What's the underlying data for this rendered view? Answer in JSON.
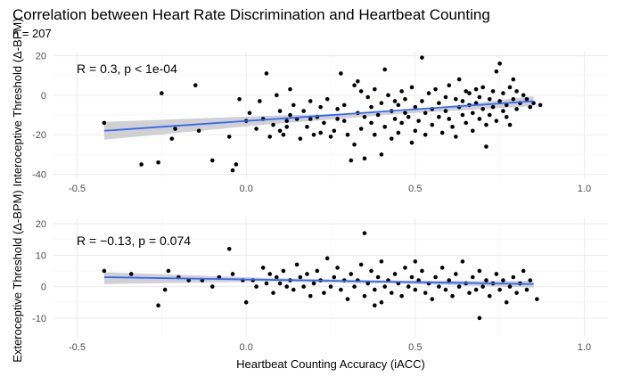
{
  "chart_data": {
    "type": "scatter",
    "title": "Correlation between Heart Rate Discrimination and Heartbeat Counting",
    "n_label": "n = 207",
    "xlabel": "Heartbeat Counting Accuracy (iACC)",
    "grid": true,
    "panels": [
      {
        "ylabel": "Interoceptive Threshold (Δ-BPM)",
        "annotation": "R = 0.3, p < 1e-04",
        "xlim": [
          -0.57,
          1.07
        ],
        "ylim": [
          -42,
          22
        ],
        "xticks": [
          -0.5,
          0.0,
          0.5,
          1.0
        ],
        "xtick_labels": [
          "-0.5",
          "0.0",
          "0.5",
          "1.0"
        ],
        "yticks": [
          -40,
          -20,
          0,
          20
        ],
        "ytick_labels": [
          "-40",
          "-20",
          "0",
          "20"
        ],
        "fit": {
          "x1": -0.42,
          "y1": -18,
          "x2": 0.85,
          "y2": -3
        },
        "band": {
          "lower": [
            -22.5,
            -15,
            -9.5,
            -5.5
          ],
          "upper": [
            -13.5,
            -10.5,
            -8.5,
            -0.5
          ],
          "x": [
            -0.42,
            0.05,
            0.45,
            0.85
          ]
        },
        "points": [
          [
            -0.42,
            -14
          ],
          [
            -0.31,
            -35
          ],
          [
            -0.25,
            1
          ],
          [
            -0.26,
            -34
          ],
          [
            -0.22,
            -22
          ],
          [
            -0.21,
            -17
          ],
          [
            -0.15,
            5
          ],
          [
            -0.14,
            -18
          ],
          [
            -0.1,
            -33
          ],
          [
            -0.05,
            -21
          ],
          [
            -0.04,
            -38
          ],
          [
            -0.03,
            -35
          ],
          [
            -0.02,
            -2
          ],
          [
            0.0,
            -13
          ],
          [
            0.01,
            -9
          ],
          [
            0.03,
            -17
          ],
          [
            0.04,
            -3
          ],
          [
            0.05,
            -12
          ],
          [
            0.06,
            11
          ],
          [
            0.07,
            -21
          ],
          [
            0.08,
            -15
          ],
          [
            0.09,
            0
          ],
          [
            0.1,
            -18
          ],
          [
            0.1,
            -8
          ],
          [
            0.11,
            -20
          ],
          [
            0.12,
            -13
          ],
          [
            0.12,
            -16
          ],
          [
            0.13,
            3
          ],
          [
            0.13,
            -10
          ],
          [
            0.14,
            -5
          ],
          [
            0.15,
            -12
          ],
          [
            0.16,
            -22
          ],
          [
            0.17,
            -8
          ],
          [
            0.18,
            -16
          ],
          [
            0.19,
            -3
          ],
          [
            0.19,
            -12
          ],
          [
            0.2,
            -20
          ],
          [
            0.21,
            -11
          ],
          [
            0.22,
            -19
          ],
          [
            0.22,
            -6
          ],
          [
            0.23,
            -14
          ],
          [
            0.24,
            -2
          ],
          [
            0.25,
            -21
          ],
          [
            0.26,
            -18
          ],
          [
            0.27,
            -7
          ],
          [
            0.27,
            -12
          ],
          [
            0.28,
            11
          ],
          [
            0.29,
            -5
          ],
          [
            0.29,
            -13
          ],
          [
            0.3,
            -20
          ],
          [
            0.31,
            -33
          ],
          [
            0.32,
            -25
          ],
          [
            0.32,
            5
          ],
          [
            0.33,
            7
          ],
          [
            0.33,
            -9
          ],
          [
            0.34,
            2
          ],
          [
            0.34,
            -17
          ],
          [
            0.35,
            -11
          ],
          [
            0.35,
            -32
          ],
          [
            0.36,
            -1
          ],
          [
            0.37,
            -14
          ],
          [
            0.37,
            -6
          ],
          [
            0.38,
            3
          ],
          [
            0.38,
            -20
          ],
          [
            0.39,
            -10
          ],
          [
            0.4,
            -30
          ],
          [
            0.4,
            -4
          ],
          [
            0.41,
            -16
          ],
          [
            0.41,
            13
          ],
          [
            0.42,
            0
          ],
          [
            0.43,
            -8
          ],
          [
            0.43,
            -22
          ],
          [
            0.44,
            -12
          ],
          [
            0.44,
            -3
          ],
          [
            0.45,
            -19
          ],
          [
            0.45,
            -5
          ],
          [
            0.46,
            2
          ],
          [
            0.46,
            -14
          ],
          [
            0.47,
            -9
          ],
          [
            0.47,
            -2
          ],
          [
            0.48,
            -11
          ],
          [
            0.49,
            -24
          ],
          [
            0.49,
            4
          ],
          [
            0.5,
            -6
          ],
          [
            0.5,
            -18
          ],
          [
            0.51,
            -13
          ],
          [
            0.52,
            19
          ],
          [
            0.52,
            -3
          ],
          [
            0.53,
            -9
          ],
          [
            0.53,
            -20
          ],
          [
            0.54,
            1
          ],
          [
            0.55,
            -7
          ],
          [
            0.55,
            -15
          ],
          [
            0.56,
            3
          ],
          [
            0.57,
            -11
          ],
          [
            0.57,
            -4
          ],
          [
            0.58,
            -19
          ],
          [
            0.59,
            -1
          ],
          [
            0.59,
            -8
          ],
          [
            0.6,
            -12
          ],
          [
            0.6,
            5
          ],
          [
            0.61,
            -16
          ],
          [
            0.62,
            -2
          ],
          [
            0.62,
            -21
          ],
          [
            0.63,
            -6
          ],
          [
            0.63,
            8
          ],
          [
            0.64,
            -10
          ],
          [
            0.64,
            -3
          ],
          [
            0.65,
            2
          ],
          [
            0.65,
            -14
          ],
          [
            0.66,
            -5
          ],
          [
            0.66,
            1
          ],
          [
            0.67,
            -9
          ],
          [
            0.67,
            -18
          ],
          [
            0.68,
            3
          ],
          [
            0.68,
            -4
          ],
          [
            0.69,
            -12
          ],
          [
            0.69,
            -1
          ],
          [
            0.7,
            -7
          ],
          [
            0.7,
            4
          ],
          [
            0.71,
            -15
          ],
          [
            0.71,
            -26
          ],
          [
            0.72,
            -2
          ],
          [
            0.72,
            -10
          ],
          [
            0.73,
            2
          ],
          [
            0.73,
            -6
          ],
          [
            0.74,
            -13
          ],
          [
            0.74,
            12
          ],
          [
            0.75,
            -3
          ],
          [
            0.75,
            16
          ],
          [
            0.76,
            -8
          ],
          [
            0.76,
            1
          ],
          [
            0.77,
            -11
          ],
          [
            0.77,
            -5
          ],
          [
            0.78,
            4
          ],
          [
            0.78,
            -15
          ],
          [
            0.79,
            -2
          ],
          [
            0.79,
            8
          ],
          [
            0.8,
            -7
          ],
          [
            0.8,
            2
          ],
          [
            0.81,
            -4
          ],
          [
            0.82,
            0
          ],
          [
            0.83,
            -2
          ],
          [
            0.84,
            -6
          ],
          [
            0.85,
            -4
          ],
          [
            0.87,
            -5
          ]
        ]
      },
      {
        "ylabel": "Exteroceptive Threshold (Δ-BPM)",
        "annotation": "R = −0.13, p = 0.074",
        "xlim": [
          -0.57,
          1.07
        ],
        "ylim": [
          -16,
          22
        ],
        "xticks": [
          -0.5,
          0.0,
          0.5,
          1.0
        ],
        "xtick_labels": [
          "-0.5",
          "0.0",
          "0.5",
          "1.0"
        ],
        "yticks": [
          -10,
          0,
          10,
          20
        ],
        "ytick_labels": [
          "-10",
          "0",
          "10",
          "20"
        ],
        "fit": {
          "x1": -0.42,
          "y1": 3,
          "x2": 0.85,
          "y2": 0.8
        },
        "band": {
          "lower": [
            0.8,
            1.6,
            0.9,
            -0.3
          ],
          "upper": [
            4.6,
            2.8,
            1.9,
            1.8
          ],
          "x": [
            -0.42,
            0.05,
            0.45,
            0.85
          ]
        },
        "points": [
          [
            -0.42,
            5
          ],
          [
            -0.34,
            4
          ],
          [
            -0.26,
            -6
          ],
          [
            -0.24,
            -1
          ],
          [
            -0.23,
            5
          ],
          [
            -0.2,
            3
          ],
          [
            -0.17,
            2
          ],
          [
            -0.13,
            2
          ],
          [
            -0.1,
            0
          ],
          [
            -0.08,
            3
          ],
          [
            -0.05,
            12
          ],
          [
            -0.04,
            4
          ],
          [
            -0.01,
            2
          ],
          [
            0.0,
            -5
          ],
          [
            0.02,
            2
          ],
          [
            0.03,
            0
          ],
          [
            0.05,
            6
          ],
          [
            0.06,
            1
          ],
          [
            0.07,
            4
          ],
          [
            0.08,
            -2
          ],
          [
            0.09,
            3
          ],
          [
            0.1,
            1
          ],
          [
            0.11,
            5
          ],
          [
            0.12,
            0
          ],
          [
            0.13,
            2
          ],
          [
            0.14,
            -1
          ],
          [
            0.15,
            7
          ],
          [
            0.16,
            3
          ],
          [
            0.17,
            0
          ],
          [
            0.18,
            4
          ],
          [
            0.19,
            -3
          ],
          [
            0.2,
            1
          ],
          [
            0.21,
            5
          ],
          [
            0.22,
            2
          ],
          [
            0.23,
            -2
          ],
          [
            0.24,
            9
          ],
          [
            0.25,
            0
          ],
          [
            0.26,
            3
          ],
          [
            0.27,
            6
          ],
          [
            0.28,
            -1
          ],
          [
            0.29,
            2
          ],
          [
            0.3,
            -4
          ],
          [
            0.31,
            4
          ],
          [
            0.32,
            0
          ],
          [
            0.33,
            2
          ],
          [
            0.34,
            7
          ],
          [
            0.35,
            -3
          ],
          [
            0.36,
            1
          ],
          [
            0.37,
            5
          ],
          [
            0.38,
            -1
          ],
          [
            0.39,
            3
          ],
          [
            0.4,
            -5
          ],
          [
            0.4,
            8
          ],
          [
            0.41,
            0
          ],
          [
            0.42,
            2
          ],
          [
            0.43,
            -2
          ],
          [
            0.44,
            4
          ],
          [
            0.45,
            1
          ],
          [
            0.46,
            -3
          ],
          [
            0.47,
            6
          ],
          [
            0.48,
            0
          ],
          [
            0.49,
            3
          ],
          [
            0.5,
            -1
          ],
          [
            0.51,
            2
          ],
          [
            0.52,
            5
          ],
          [
            0.53,
            -2
          ],
          [
            0.54,
            1
          ],
          [
            0.55,
            -4
          ],
          [
            0.56,
            3
          ],
          [
            0.57,
            0
          ],
          [
            0.58,
            6
          ],
          [
            0.59,
            -1
          ],
          [
            0.6,
            2
          ],
          [
            0.61,
            -3
          ],
          [
            0.62,
            4
          ],
          [
            0.63,
            0
          ],
          [
            0.64,
            8
          ],
          [
            0.65,
            1
          ],
          [
            0.66,
            -2
          ],
          [
            0.67,
            3
          ],
          [
            0.68,
            -1
          ],
          [
            0.69,
            5
          ],
          [
            0.7,
            0
          ],
          [
            0.71,
            2
          ],
          [
            0.72,
            -3
          ],
          [
            0.73,
            1
          ],
          [
            0.74,
            4
          ],
          [
            0.75,
            -1
          ],
          [
            0.76,
            2
          ],
          [
            0.77,
            -5
          ],
          [
            0.78,
            0
          ],
          [
            0.79,
            3
          ],
          [
            0.8,
            -2
          ],
          [
            0.81,
            1
          ],
          [
            0.82,
            5
          ],
          [
            0.83,
            -1
          ],
          [
            0.84,
            2
          ],
          [
            0.86,
            -4
          ],
          [
            0.38,
            -6
          ],
          [
            0.5,
            8
          ],
          [
            0.35,
            17
          ],
          [
            0.69,
            -10
          ]
        ]
      }
    ]
  }
}
